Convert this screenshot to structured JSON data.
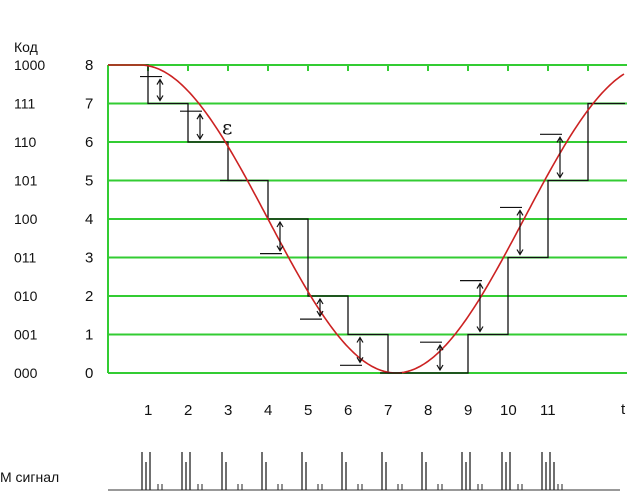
{
  "header": {
    "code_axis_label": "Код",
    "time_axis_label": "t",
    "signal_label": "М сигнал",
    "error_label": "ε"
  },
  "colors": {
    "grid": "#33cc33",
    "curve": "#cc2222",
    "steps": "#111111",
    "background": "#ffffff"
  },
  "code_labels": [
    "000",
    "001",
    "010",
    "011",
    "100",
    "101",
    "110",
    "111",
    "1000"
  ],
  "level_labels": [
    "0",
    "1",
    "2",
    "3",
    "4",
    "5",
    "6",
    "7",
    "8"
  ],
  "sample_labels": [
    "1",
    "2",
    "3",
    "4",
    "5",
    "6",
    "7",
    "8",
    "9",
    "10",
    "11"
  ],
  "quantized_levels": [
    8,
    7,
    6,
    5,
    4,
    2,
    1,
    0,
    0,
    1,
    3,
    5,
    7
  ],
  "analog_samples": [
    8,
    7.7,
    6.8,
    5.0,
    3.1,
    1.4,
    0.2,
    0.0,
    0.8,
    2.4,
    4.3,
    6.2,
    7.5
  ],
  "pcm_bursts": [
    {
      "sample": 1,
      "pulses": 3
    },
    {
      "sample": 2,
      "pulses": 3
    },
    {
      "sample": 3,
      "pulses": 2
    },
    {
      "sample": 4,
      "pulses": 2
    },
    {
      "sample": 5,
      "pulses": 2
    },
    {
      "sample": 6,
      "pulses": 2
    },
    {
      "sample": 7,
      "pulses": 2
    },
    {
      "sample": 8,
      "pulses": 2
    },
    {
      "sample": 9,
      "pulses": 3
    },
    {
      "sample": 10,
      "pulses": 3
    },
    {
      "sample": 11,
      "pulses": 4
    }
  ]
}
